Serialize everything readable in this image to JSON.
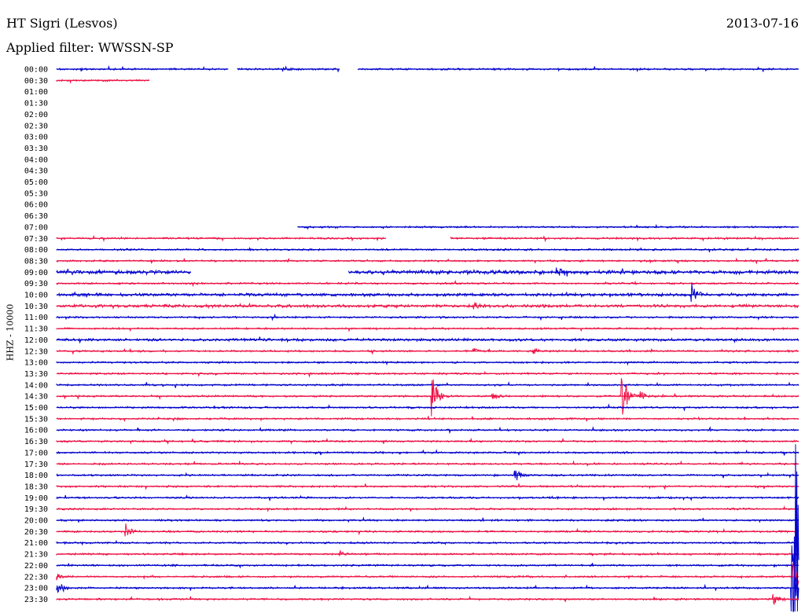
{
  "header": {
    "station": "HT Sigri (Lesvos)",
    "date": "2013-07-16",
    "filter": "Applied filter: WWSSN-SP",
    "channel": "HHZ - 10000"
  },
  "colors": {
    "even_row": "#0000cc",
    "odd_row": "#ee1144"
  },
  "chart_data": {
    "type": "line",
    "subtype": "helicorder",
    "row_labels": [
      "00:00",
      "00:30",
      "01:00",
      "01:30",
      "02:00",
      "02:30",
      "03:00",
      "03:30",
      "04:00",
      "04:30",
      "05:00",
      "05:30",
      "06:00",
      "06:30",
      "07:00",
      "07:30",
      "08:00",
      "08:30",
      "09:00",
      "09:30",
      "10:00",
      "10:30",
      "11:00",
      "11:30",
      "12:00",
      "12:30",
      "13:00",
      "13:30",
      "14:00",
      "14:30",
      "15:00",
      "15:30",
      "16:00",
      "16:30",
      "17:00",
      "17:30",
      "18:00",
      "18:30",
      "19:00",
      "19:30",
      "20:00",
      "20:30",
      "21:00",
      "21:30",
      "22:00",
      "22:30",
      "23:00",
      "23:30"
    ],
    "segments_minutes": {
      "00:00": [
        [
          0,
          18.5
        ],
        [
          19.5,
          30.5
        ],
        [
          32.5,
          80
        ]
      ],
      "00:30": [
        [
          0,
          10
        ]
      ],
      "07:00": [
        [
          26,
          80
        ]
      ],
      "07:30": [
        [
          0,
          35.5
        ],
        [
          42.5,
          80
        ]
      ],
      "09:00": [
        [
          0,
          14.5
        ],
        [
          31.5,
          80
        ]
      ]
    },
    "noise_amplitude_hint": {
      "09:00": 2,
      "10:00": 1.5,
      "10:30": 1.5,
      "12:00": 1.3
    },
    "events": [
      {
        "row": "00:00",
        "minute": 24.5,
        "amplitude": 3
      },
      {
        "row": "09:00",
        "minute": 54,
        "amplitude": 6
      },
      {
        "row": "09:30",
        "minute": 62,
        "amplitude": 2
      },
      {
        "row": "10:00",
        "minute": 68.5,
        "amplitude": 14
      },
      {
        "row": "10:30",
        "minute": 45,
        "amplitude": 4
      },
      {
        "row": "12:30",
        "minute": 45,
        "amplitude": 3
      },
      {
        "row": "12:30",
        "minute": 51.5,
        "amplitude": 3
      },
      {
        "row": "14:30",
        "minute": 40.5,
        "amplitude": 30
      },
      {
        "row": "14:30",
        "minute": 47,
        "amplitude": 6
      },
      {
        "row": "14:30",
        "minute": 61,
        "amplitude": 35
      },
      {
        "row": "14:30",
        "minute": 63,
        "amplitude": 6
      },
      {
        "row": "18:00",
        "minute": 49.5,
        "amplitude": 8
      },
      {
        "row": "20:30",
        "minute": 7.5,
        "amplitude": 10
      },
      {
        "row": "21:30",
        "minute": 30.5,
        "amplitude": 4
      },
      {
        "row": "22:00",
        "minute": 79.5,
        "amplitude": 320
      },
      {
        "row": "22:30",
        "minute": 0,
        "amplitude": 4
      },
      {
        "row": "22:30",
        "minute": 79.5,
        "amplitude": 22
      },
      {
        "row": "23:00",
        "minute": 0,
        "amplitude": 16
      },
      {
        "row": "23:00",
        "minute": 79.3,
        "amplitude": 60
      },
      {
        "row": "23:30",
        "minute": 77.3,
        "amplitude": 10
      }
    ]
  }
}
